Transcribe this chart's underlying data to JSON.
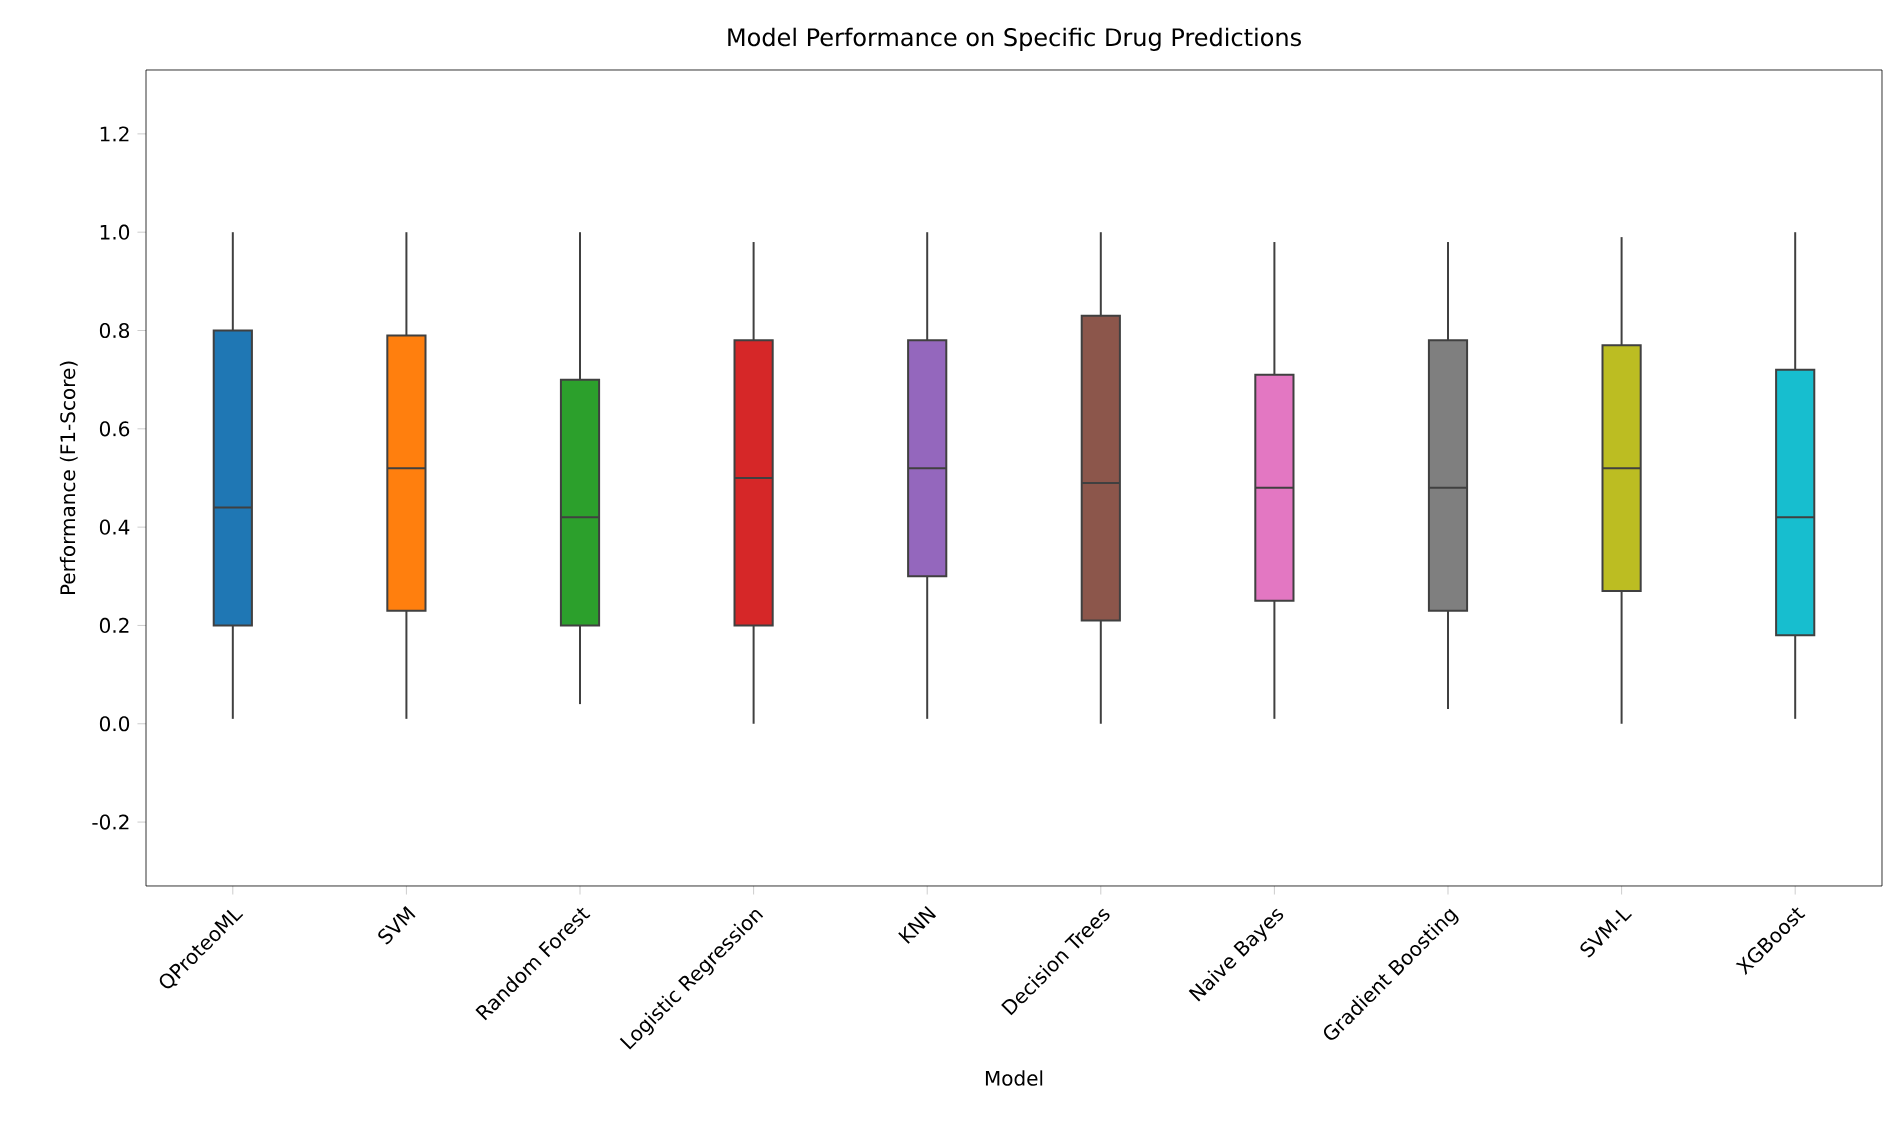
{
  "chart_data": {
    "type": "box",
    "title": "Model Performance on Specific Drug Predictions",
    "xlabel": "Model",
    "ylabel": "Performance (F1-Score)",
    "categories": [
      "QProteoML",
      "SVM",
      "Random Forest",
      "Logistic Regression",
      "KNN",
      "Decision Trees",
      "Naive Bayes",
      "Gradient Boosting",
      "SVM-L",
      "XGBoost"
    ],
    "colors": [
      "#1f77b4",
      "#ff7f0e",
      "#2ca02c",
      "#d62728",
      "#9467bd",
      "#8c564b",
      "#e377c2",
      "#7f7f7f",
      "#bcbd22",
      "#17becf"
    ],
    "boxes": [
      {
        "low": 0.01,
        "q1": 0.2,
        "median": 0.44,
        "q3": 0.8,
        "high": 1.0
      },
      {
        "low": 0.01,
        "q1": 0.23,
        "median": 0.52,
        "q3": 0.79,
        "high": 1.0
      },
      {
        "low": 0.04,
        "q1": 0.2,
        "median": 0.42,
        "q3": 0.7,
        "high": 1.0
      },
      {
        "low": 0.0,
        "q1": 0.2,
        "median": 0.5,
        "q3": 0.78,
        "high": 0.98
      },
      {
        "low": 0.01,
        "q1": 0.3,
        "median": 0.52,
        "q3": 0.78,
        "high": 1.0
      },
      {
        "low": 0.0,
        "q1": 0.21,
        "median": 0.49,
        "q3": 0.83,
        "high": 1.0
      },
      {
        "low": 0.01,
        "q1": 0.25,
        "median": 0.48,
        "q3": 0.71,
        "high": 0.98
      },
      {
        "low": 0.03,
        "q1": 0.23,
        "median": 0.48,
        "q3": 0.78,
        "high": 0.98
      },
      {
        "low": 0.0,
        "q1": 0.27,
        "median": 0.52,
        "q3": 0.77,
        "high": 0.99
      },
      {
        "low": 0.01,
        "q1": 0.18,
        "median": 0.42,
        "q3": 0.72,
        "high": 1.0
      }
    ],
    "ylim": [
      -0.33,
      1.33
    ],
    "yticks": [
      -0.2,
      {
        "value": 0,
        "label": "0.0"
      },
      0.2,
      0.4,
      0.6,
      0.8,
      {
        "value": 1,
        "label": "1.0"
      },
      1.2
    ]
  }
}
